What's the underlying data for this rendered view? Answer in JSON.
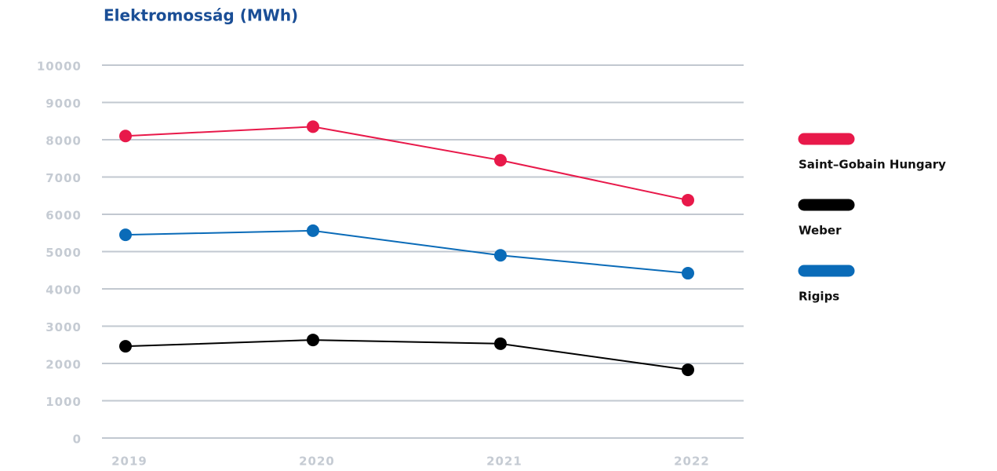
{
  "chart_data": {
    "type": "line",
    "title": "Elektromosság (MWh)",
    "categories": [
      "2019",
      "2020",
      "2021",
      "2022"
    ],
    "series": [
      {
        "name": "Saint–Gobain Hungary",
        "color": "#e8194a",
        "values": [
          8100,
          8350,
          7450,
          6380
        ]
      },
      {
        "name": "Weber",
        "color": "#000000",
        "values": [
          2460,
          2630,
          2530,
          1830
        ]
      },
      {
        "name": "Rigips",
        "color": "#0a6bb8",
        "values": [
          5450,
          5560,
          4900,
          4420
        ]
      }
    ],
    "ylim": [
      0,
      10000
    ],
    "yticks": [
      0,
      1000,
      2000,
      3000,
      4000,
      5000,
      6000,
      7000,
      8000,
      9000,
      10000
    ],
    "grid": true,
    "legend": "right"
  }
}
